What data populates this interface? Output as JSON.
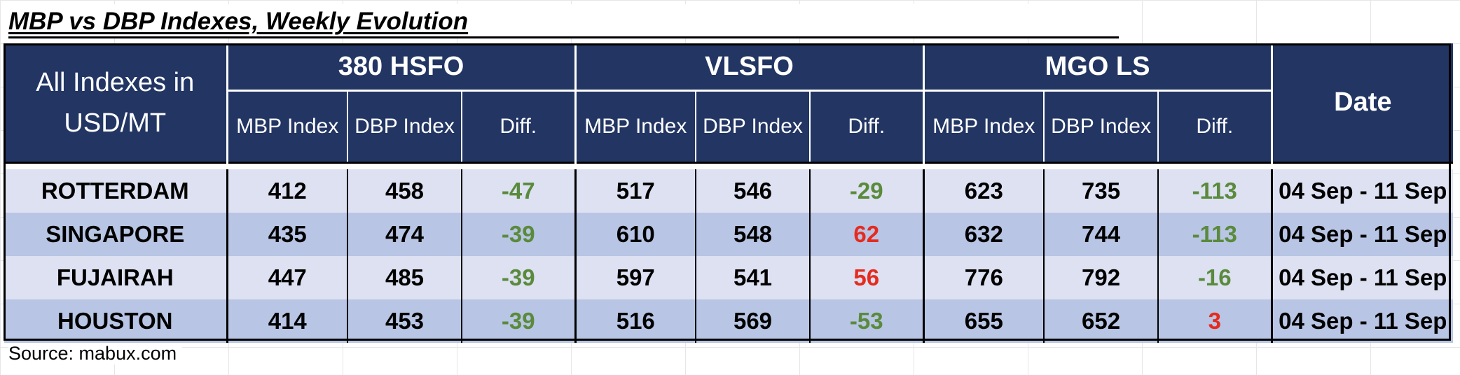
{
  "title": "MBP vs DBP Indexes, Weekly Evolution",
  "corner_label": "All Indexes in USD/MT",
  "groups": [
    "380 HSFO",
    "VLSFO",
    "MGO LS"
  ],
  "subheaders": [
    "MBP Index",
    "DBP Index",
    "Diff."
  ],
  "date_header": "Date",
  "rows": [
    {
      "port": "ROTTERDAM",
      "hsfo": [
        "412",
        "458",
        "-47"
      ],
      "vlsfo": [
        "517",
        "546",
        "-29"
      ],
      "mgo": [
        "623",
        "735",
        "-113"
      ],
      "date": "04 Sep - 11 Sep"
    },
    {
      "port": "SINGAPORE",
      "hsfo": [
        "435",
        "474",
        "-39"
      ],
      "vlsfo": [
        "610",
        "548",
        "62"
      ],
      "mgo": [
        "632",
        "744",
        "-113"
      ],
      "date": "04 Sep - 11 Sep"
    },
    {
      "port": "FUJAIRAH",
      "hsfo": [
        "447",
        "485",
        "-39"
      ],
      "vlsfo": [
        "597",
        "541",
        "56"
      ],
      "mgo": [
        "776",
        "792",
        "-16"
      ],
      "date": "04 Sep - 11 Sep"
    },
    {
      "port": "HOUSTON",
      "hsfo": [
        "414",
        "453",
        "-39"
      ],
      "vlsfo": [
        "516",
        "569",
        "-53"
      ],
      "mgo": [
        "655",
        "652",
        "3"
      ],
      "date": "04 Sep - 11 Sep"
    }
  ],
  "source": "Source: mabux.com",
  "colors": {
    "header_bg": "#223563",
    "row_light": "#dde1f1",
    "row_dark": "#b8c5e4",
    "negative": "#5a8a3c",
    "positive": "#e52b1f"
  }
}
